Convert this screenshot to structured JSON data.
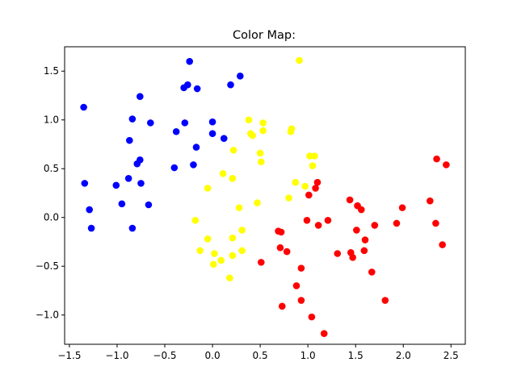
{
  "chart_data": {
    "type": "scatter",
    "title": "Color Map:",
    "xlabel": "",
    "ylabel": "",
    "xlim": [
      -1.55,
      2.65
    ],
    "ylim": [
      -1.3,
      1.75
    ],
    "xticks": [
      -1.5,
      -1.0,
      -0.5,
      0.0,
      0.5,
      1.0,
      1.5,
      2.0,
      2.5
    ],
    "yticks": [
      -1.0,
      -0.5,
      0.0,
      0.5,
      1.0,
      1.5
    ],
    "xtick_labels": [
      "−1.5",
      "−1.0",
      "−0.5",
      "0.0",
      "0.5",
      "1.0",
      "1.5",
      "2.0",
      "2.5"
    ],
    "ytick_labels": [
      "−1.0",
      "−0.5",
      "0.0",
      "0.5",
      "1.0",
      "1.5"
    ],
    "grid": false,
    "legend": "none",
    "series": [
      {
        "color": "#0000ff",
        "points": [
          [
            -1.35,
            1.13
          ],
          [
            -1.34,
            0.35
          ],
          [
            -1.29,
            0.08
          ],
          [
            -1.27,
            -0.11
          ],
          [
            -1.01,
            0.33
          ],
          [
            -0.95,
            0.14
          ],
          [
            -0.88,
            0.4
          ],
          [
            -0.87,
            0.79
          ],
          [
            -0.84,
            1.01
          ],
          [
            -0.84,
            -0.11
          ],
          [
            -0.79,
            0.55
          ],
          [
            -0.76,
            0.59
          ],
          [
            -0.76,
            1.24
          ],
          [
            -0.75,
            0.35
          ],
          [
            -0.67,
            0.13
          ],
          [
            -0.65,
            0.97
          ],
          [
            -0.4,
            0.51
          ],
          [
            -0.38,
            0.88
          ],
          [
            -0.3,
            1.33
          ],
          [
            -0.29,
            0.97
          ],
          [
            -0.26,
            1.36
          ],
          [
            -0.24,
            1.6
          ],
          [
            -0.2,
            0.54
          ],
          [
            -0.17,
            0.72
          ],
          [
            -0.16,
            1.32
          ],
          [
            0.0,
            0.98
          ],
          [
            0.0,
            0.86
          ],
          [
            0.12,
            0.81
          ],
          [
            0.19,
            1.36
          ],
          [
            0.29,
            1.45
          ]
        ]
      },
      {
        "color": "#ffff00",
        "points": [
          [
            -0.18,
            -0.03
          ],
          [
            -0.13,
            -0.34
          ],
          [
            -0.05,
            0.3
          ],
          [
            -0.05,
            -0.22
          ],
          [
            0.01,
            -0.48
          ],
          [
            0.02,
            -0.37
          ],
          [
            0.09,
            -0.44
          ],
          [
            0.11,
            0.45
          ],
          [
            0.18,
            -0.62
          ],
          [
            0.21,
            0.4
          ],
          [
            0.21,
            -0.21
          ],
          [
            0.21,
            -0.39
          ],
          [
            0.22,
            0.69
          ],
          [
            0.28,
            0.1
          ],
          [
            0.31,
            -0.13
          ],
          [
            0.31,
            -0.34
          ],
          [
            0.38,
            1.0
          ],
          [
            0.4,
            0.86
          ],
          [
            0.42,
            0.84
          ],
          [
            0.47,
            0.15
          ],
          [
            0.5,
            0.66
          ],
          [
            0.51,
            0.57
          ],
          [
            0.53,
            0.97
          ],
          [
            0.53,
            0.89
          ],
          [
            0.8,
            0.2
          ],
          [
            0.82,
            0.88
          ],
          [
            0.83,
            0.91
          ],
          [
            0.87,
            0.36
          ],
          [
            0.91,
            1.61
          ],
          [
            0.97,
            0.32
          ],
          [
            1.02,
            0.63
          ],
          [
            1.05,
            0.53
          ],
          [
            1.07,
            0.63
          ]
        ]
      },
      {
        "color": "#ff0000",
        "points": [
          [
            0.51,
            -0.46
          ],
          [
            0.69,
            -0.14
          ],
          [
            0.71,
            -0.31
          ],
          [
            0.72,
            -0.15
          ],
          [
            0.73,
            -0.91
          ],
          [
            0.78,
            -0.35
          ],
          [
            0.88,
            -0.7
          ],
          [
            0.93,
            -0.85
          ],
          [
            0.93,
            -0.52
          ],
          [
            0.99,
            -0.03
          ],
          [
            1.01,
            0.23
          ],
          [
            1.04,
            -1.02
          ],
          [
            1.08,
            0.3
          ],
          [
            1.1,
            0.36
          ],
          [
            1.11,
            -0.08
          ],
          [
            1.17,
            -1.19
          ],
          [
            1.21,
            -0.03
          ],
          [
            1.31,
            -0.37
          ],
          [
            1.44,
            0.18
          ],
          [
            1.45,
            -0.36
          ],
          [
            1.47,
            -0.41
          ],
          [
            1.51,
            -0.13
          ],
          [
            1.52,
            0.12
          ],
          [
            1.56,
            0.08
          ],
          [
            1.59,
            -0.34
          ],
          [
            1.6,
            -0.23
          ],
          [
            1.67,
            -0.56
          ],
          [
            1.7,
            -0.08
          ],
          [
            1.81,
            -0.85
          ],
          [
            1.93,
            -0.06
          ],
          [
            1.99,
            0.1
          ],
          [
            2.28,
            0.17
          ],
          [
            2.34,
            -0.06
          ],
          [
            2.35,
            0.6
          ],
          [
            2.41,
            -0.28
          ],
          [
            2.45,
            0.54
          ]
        ]
      }
    ]
  }
}
